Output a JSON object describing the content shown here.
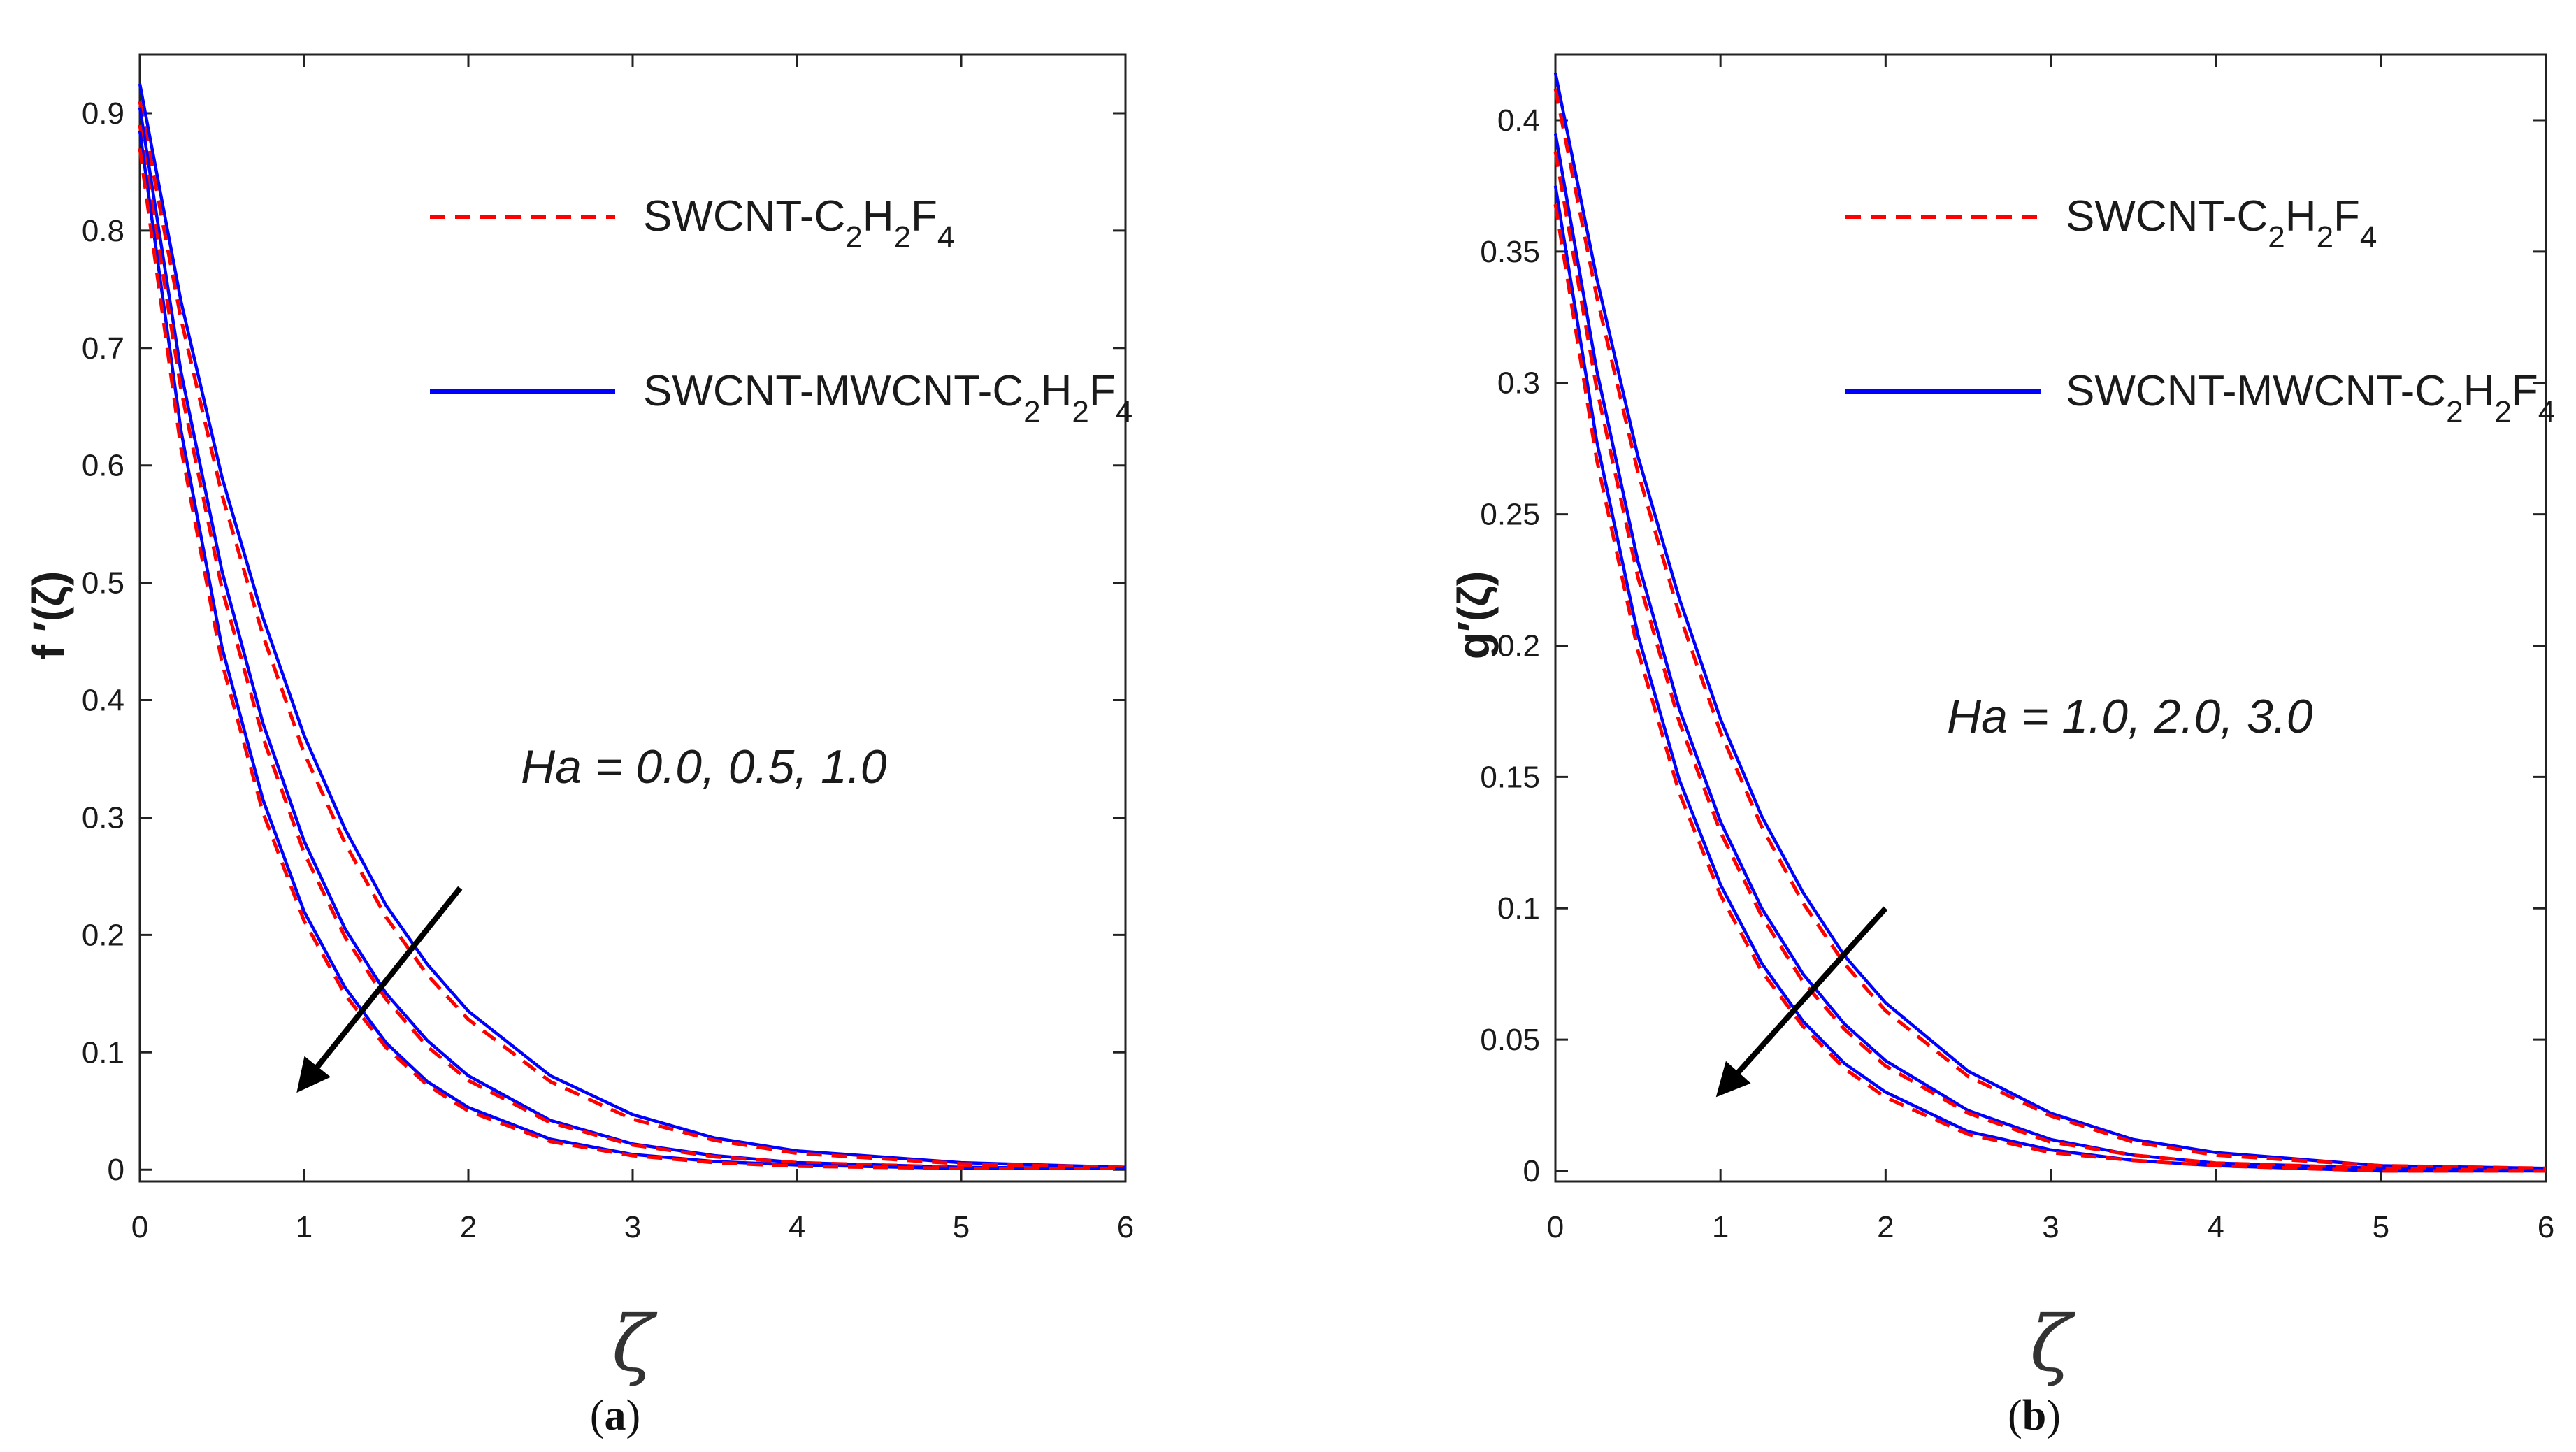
{
  "chart_data": [
    {
      "type": "line",
      "panel": "a",
      "caption_open": "(",
      "caption_letter": "a",
      "caption_close": ")",
      "xlabel": "ζ",
      "ylabel": "f ′(ζ)",
      "xlim": [
        0,
        6
      ],
      "ylim": [
        -0.01,
        0.95
      ],
      "xticks": [
        0,
        1,
        2,
        3,
        4,
        5,
        6
      ],
      "xtick_labels": [
        "0",
        "1",
        "2",
        "3",
        "4",
        "5",
        "6"
      ],
      "yticks": [
        0,
        0.1,
        0.2,
        0.3,
        0.4,
        0.5,
        0.6,
        0.7,
        0.8,
        0.9
      ],
      "ytick_labels": [
        "0",
        "0.1",
        "0.2",
        "0.3",
        "0.4",
        "0.5",
        "0.6",
        "0.7",
        "0.8",
        "0.9"
      ],
      "annotation": "Ha = 0.0, 0.5, 1.0",
      "legend": [
        {
          "base": "SWCNT-C",
          "subs": [
            [
              "2",
              "H"
            ],
            [
              "2",
              "F"
            ],
            [
              "4",
              ""
            ]
          ],
          "style": "dashed",
          "color": "#ff0000"
        },
        {
          "base": "SWCNT-MWCNT-C",
          "subs": [
            [
              "2",
              "H"
            ],
            [
              "2",
              "F"
            ],
            [
              "4",
              ""
            ]
          ],
          "style": "solid",
          "color": "#0000ff"
        }
      ],
      "x": [
        0,
        0.25,
        0.5,
        0.75,
        1,
        1.25,
        1.5,
        1.75,
        2,
        2.5,
        3,
        3.5,
        4,
        5,
        6
      ],
      "series": [
        {
          "name": "SWCNT-MWCNT-C2H2F4, Ha = 0.0",
          "style": "solid",
          "color": "#0000ff",
          "values": [
            0.925,
            0.74,
            0.59,
            0.47,
            0.37,
            0.29,
            0.225,
            0.175,
            0.135,
            0.08,
            0.047,
            0.027,
            0.016,
            0.006,
            0.002
          ]
        },
        {
          "name": "SWCNT-C2H2F4, Ha = 0.0",
          "style": "dashed",
          "color": "#ff0000",
          "values": [
            0.91,
            0.725,
            0.575,
            0.455,
            0.355,
            0.278,
            0.215,
            0.166,
            0.128,
            0.075,
            0.043,
            0.025,
            0.014,
            0.005,
            0.002
          ]
        },
        {
          "name": "SWCNT-MWCNT-C2H2F4, Ha = 0.5",
          "style": "solid",
          "color": "#0000ff",
          "values": [
            0.905,
            0.68,
            0.51,
            0.38,
            0.28,
            0.205,
            0.15,
            0.11,
            0.08,
            0.042,
            0.022,
            0.012,
            0.006,
            0.002,
            0.001
          ]
        },
        {
          "name": "SWCNT-C2H2F4, Ha = 0.5",
          "style": "dashed",
          "color": "#ff0000",
          "values": [
            0.89,
            0.665,
            0.495,
            0.368,
            0.27,
            0.198,
            0.145,
            0.105,
            0.076,
            0.04,
            0.021,
            0.011,
            0.006,
            0.002,
            0.001
          ]
        },
        {
          "name": "SWCNT-MWCNT-C2H2F4, Ha = 1.0",
          "style": "solid",
          "color": "#0000ff",
          "values": [
            0.885,
            0.63,
            0.445,
            0.315,
            0.22,
            0.155,
            0.108,
            0.075,
            0.053,
            0.026,
            0.013,
            0.007,
            0.004,
            0.001,
            0.001
          ]
        },
        {
          "name": "SWCNT-C2H2F4, Ha = 1.0",
          "style": "dashed",
          "color": "#ff0000",
          "values": [
            0.87,
            0.615,
            0.432,
            0.304,
            0.212,
            0.149,
            0.104,
            0.072,
            0.05,
            0.024,
            0.012,
            0.006,
            0.003,
            0.001,
            0.001
          ]
        }
      ],
      "arrow": {
        "from": [
          1.95,
          0.24
        ],
        "to": [
          0.98,
          0.07
        ]
      }
    },
    {
      "type": "line",
      "panel": "b",
      "caption_open": "(",
      "caption_letter": "b",
      "caption_close": ")",
      "xlabel": "ζ",
      "ylabel": "g′(ζ)",
      "xlim": [
        0,
        6
      ],
      "ylim": [
        -0.004,
        0.425
      ],
      "xticks": [
        0,
        1,
        2,
        3,
        4,
        5,
        6
      ],
      "xtick_labels": [
        "0",
        "1",
        "2",
        "3",
        "4",
        "5",
        "6"
      ],
      "yticks": [
        0,
        0.05,
        0.1,
        0.15,
        0.2,
        0.25,
        0.3,
        0.35,
        0.4
      ],
      "ytick_labels": [
        "0",
        "0.05",
        "0.1",
        "0.15",
        "0.2",
        "0.25",
        "0.3",
        "0.35",
        "0.4"
      ],
      "annotation": "Ha = 1.0, 2.0, 3.0",
      "legend": [
        {
          "base": "SWCNT-C",
          "subs": [
            [
              "2",
              "H"
            ],
            [
              "2",
              "F"
            ],
            [
              "4",
              ""
            ]
          ],
          "style": "dashed",
          "color": "#ff0000"
        },
        {
          "base": "SWCNT-MWCNT-C",
          "subs": [
            [
              "2",
              "H"
            ],
            [
              "2",
              "F"
            ],
            [
              "4",
              ""
            ]
          ],
          "style": "solid",
          "color": "#0000ff"
        }
      ],
      "x": [
        0,
        0.25,
        0.5,
        0.75,
        1,
        1.25,
        1.5,
        1.75,
        2,
        2.5,
        3,
        3.5,
        4,
        5,
        6
      ],
      "series": [
        {
          "name": "SWCNT-MWCNT-C2H2F4, Ha = 1.0",
          "style": "solid",
          "color": "#0000ff",
          "values": [
            0.418,
            0.34,
            0.272,
            0.218,
            0.172,
            0.135,
            0.106,
            0.082,
            0.064,
            0.038,
            0.022,
            0.012,
            0.007,
            0.002,
            0.001
          ]
        },
        {
          "name": "SWCNT-C2H2F4, Ha = 1.0",
          "style": "dashed",
          "color": "#ff0000",
          "values": [
            0.412,
            0.333,
            0.266,
            0.212,
            0.167,
            0.131,
            0.102,
            0.079,
            0.061,
            0.036,
            0.021,
            0.011,
            0.006,
            0.002,
            0.001
          ]
        },
        {
          "name": "SWCNT-MWCNT-C2H2F4, Ha = 2.0",
          "style": "solid",
          "color": "#0000ff",
          "values": [
            0.395,
            0.305,
            0.232,
            0.176,
            0.133,
            0.1,
            0.075,
            0.056,
            0.042,
            0.023,
            0.012,
            0.006,
            0.003,
            0.001,
            0.0
          ]
        },
        {
          "name": "SWCNT-C2H2F4, Ha = 2.0",
          "style": "dashed",
          "color": "#ff0000",
          "values": [
            0.388,
            0.298,
            0.226,
            0.171,
            0.129,
            0.097,
            0.072,
            0.054,
            0.04,
            0.022,
            0.011,
            0.006,
            0.003,
            0.001,
            0.0
          ]
        },
        {
          "name": "SWCNT-MWCNT-C2H2F4, Ha = 3.0",
          "style": "solid",
          "color": "#0000ff",
          "values": [
            0.375,
            0.278,
            0.204,
            0.149,
            0.109,
            0.079,
            0.057,
            0.041,
            0.03,
            0.015,
            0.008,
            0.004,
            0.002,
            0.0,
            0.0
          ]
        },
        {
          "name": "SWCNT-C2H2F4, Ha = 3.0",
          "style": "dashed",
          "color": "#ff0000",
          "values": [
            0.368,
            0.271,
            0.198,
            0.144,
            0.105,
            0.076,
            0.055,
            0.039,
            0.028,
            0.014,
            0.007,
            0.004,
            0.002,
            0.0,
            0.0
          ]
        }
      ],
      "arrow": {
        "from": [
          2.0,
          0.1
        ],
        "to": [
          1.0,
          0.03
        ]
      }
    }
  ]
}
